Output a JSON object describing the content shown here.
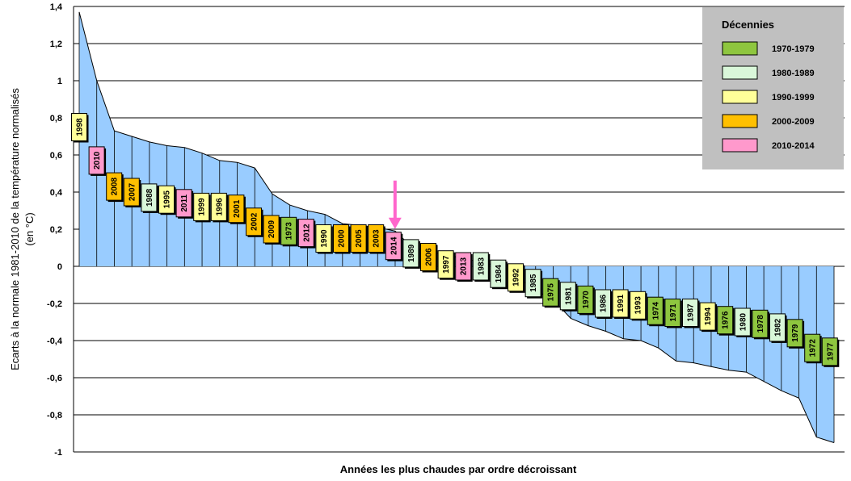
{
  "chart_data": {
    "type": "area",
    "xlabel": "Années les plus chaudes par ordre décroissant",
    "ylabel_line1": "Ecarts à la normale 1981-2010 de la température normalisés",
    "ylabel_line2": "(en °C)",
    "ylim": [
      -1,
      1.4
    ],
    "yticks": [
      "-1",
      "-0,8",
      "-0,6",
      "-0,4",
      "-0,2",
      "0",
      "0,2",
      "0,4",
      "0,6",
      "0,8",
      "1",
      "1,2",
      "1,4"
    ],
    "grid": true,
    "highlight_year": "2014",
    "years": [
      "1998",
      "2010",
      "2008",
      "2007",
      "1988",
      "1995",
      "2011",
      "1999",
      "1996",
      "2001",
      "2002",
      "2009",
      "1973",
      "2012",
      "1990",
      "2000",
      "2005",
      "2003",
      "2014",
      "1989",
      "2006",
      "1997",
      "2013",
      "1983",
      "1984",
      "1992",
      "1985",
      "1975",
      "1981",
      "1970",
      "1986",
      "1991",
      "1993",
      "1974",
      "1971",
      "1987",
      "1994",
      "1976",
      "1980",
      "1978",
      "1982",
      "1979",
      "1972",
      "1977"
    ],
    "values": [
      1.37,
      1.0,
      0.73,
      0.7,
      0.67,
      0.65,
      0.64,
      0.61,
      0.57,
      0.56,
      0.53,
      0.39,
      0.33,
      0.3,
      0.28,
      0.23,
      0.22,
      0.21,
      0.19,
      0.1,
      0.08,
      0.06,
      0.04,
      0.02,
      0.0,
      -0.06,
      -0.13,
      -0.18,
      -0.28,
      -0.32,
      -0.35,
      -0.39,
      -0.4,
      -0.44,
      -0.51,
      -0.52,
      -0.54,
      -0.56,
      -0.57,
      -0.62,
      -0.67,
      -0.71,
      -0.92,
      -0.95
    ],
    "label_levels": [
      0.75,
      0.57,
      0.43,
      0.4,
      0.37,
      0.36,
      0.34,
      0.32,
      0.32,
      0.31,
      0.24,
      0.2,
      0.19,
      0.18,
      0.15,
      0.15,
      0.15,
      0.15,
      0.11,
      0.07,
      0.05,
      0.01,
      0.0,
      0.0,
      -0.04,
      -0.06,
      -0.09,
      -0.14,
      -0.16,
      -0.18,
      -0.2,
      -0.2,
      -0.21,
      -0.24,
      -0.25,
      -0.25,
      -0.27,
      -0.29,
      -0.3,
      -0.31,
      -0.33,
      -0.36,
      -0.44,
      -0.46
    ],
    "legend": {
      "title": "Décennies",
      "position": "top-right",
      "items": [
        {
          "label": "1970-1979",
          "color": "#8ec63f"
        },
        {
          "label": "1980-1989",
          "color": "#d9f7d9"
        },
        {
          "label": "1990-1999",
          "color": "#ffff99"
        },
        {
          "label": "2000-2009",
          "color": "#ffc000"
        },
        {
          "label": "2010-2014",
          "color": "#ff99cc"
        }
      ]
    },
    "area_color": "#99ccff",
    "arrow_color": "#ff66cc"
  }
}
